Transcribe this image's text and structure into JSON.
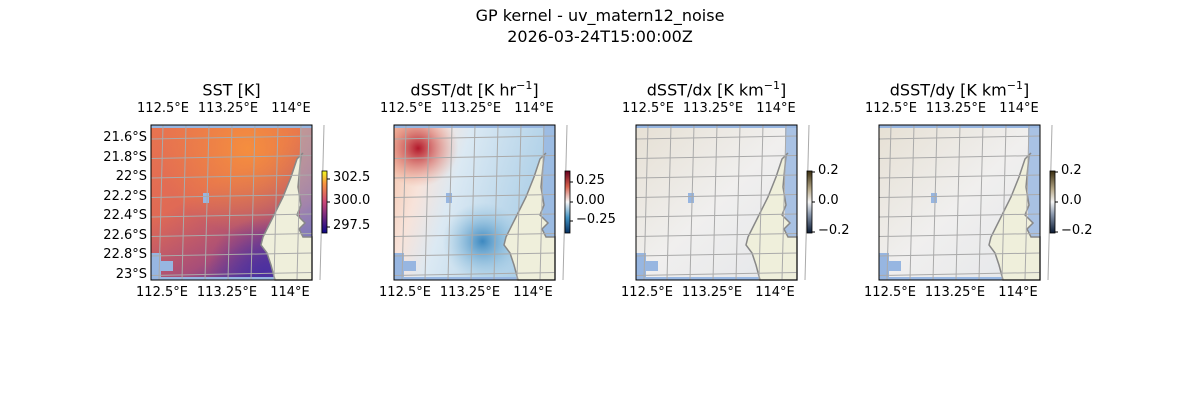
{
  "figure": {
    "title_line1": "GP kernel - uv_matern12_noise",
    "title_line2": "2026-03-24T15:00:00Z"
  },
  "chart_data": [
    {
      "type": "heatmap",
      "title": "SST [K]",
      "title_base": "SST [K]",
      "title_sup": "",
      "title_end": "",
      "x_ticks": [
        "112.5°E",
        "113.25°E",
        "114°E"
      ],
      "y_ticks": [
        "21.6°S",
        "21.8°S",
        "22°S",
        "22.2°S",
        "22.4°S",
        "22.6°S",
        "22.8°S",
        "23°S"
      ],
      "colorbar_ticks": [
        "302.5",
        "300.0",
        "297.5"
      ],
      "colorbar_range": [
        297,
        303
      ],
      "colormap": "plasma-like",
      "grid": true
    },
    {
      "type": "heatmap",
      "title": "dSST/dt [K hr^-1]",
      "title_base": "dSST/dt [K hr",
      "title_sup": "−1",
      "title_end": "]",
      "x_ticks": [
        "112.5°E",
        "113.25°E",
        "114°E"
      ],
      "y_ticks": [],
      "colorbar_ticks": [
        "0.25",
        "0.00",
        "−0.25"
      ],
      "colorbar_range": [
        -0.4,
        0.4
      ],
      "colormap": "RdBu_r",
      "grid": true
    },
    {
      "type": "heatmap",
      "title": "dSST/dx [K km^-1]",
      "title_base": "dSST/dx [K km",
      "title_sup": "−1",
      "title_end": "]",
      "x_ticks": [
        "112.5°E",
        "113.25°E",
        "114°E"
      ],
      "y_ticks": [],
      "colorbar_ticks": [
        "0.2",
        "0.0",
        "−0.2"
      ],
      "colorbar_range": [
        -0.2,
        0.2
      ],
      "colormap": "cividis-diverging",
      "grid": true
    },
    {
      "type": "heatmap",
      "title": "dSST/dy [K km^-1]",
      "title_base": "dSST/dy [K km",
      "title_sup": "−1",
      "title_end": "]",
      "x_ticks": [
        "112.5°E",
        "113.25°E",
        "114°E"
      ],
      "y_ticks": [],
      "colorbar_ticks": [
        "0.2",
        "0.0",
        "−0.2"
      ],
      "colorbar_range": [
        -0.2,
        0.2
      ],
      "colormap": "cividis-diverging",
      "grid": true
    }
  ],
  "colors": {
    "land": "#efefdb",
    "water_mask": "#97b6e1",
    "coast": "#888888",
    "grid": "#aaaaaa"
  }
}
